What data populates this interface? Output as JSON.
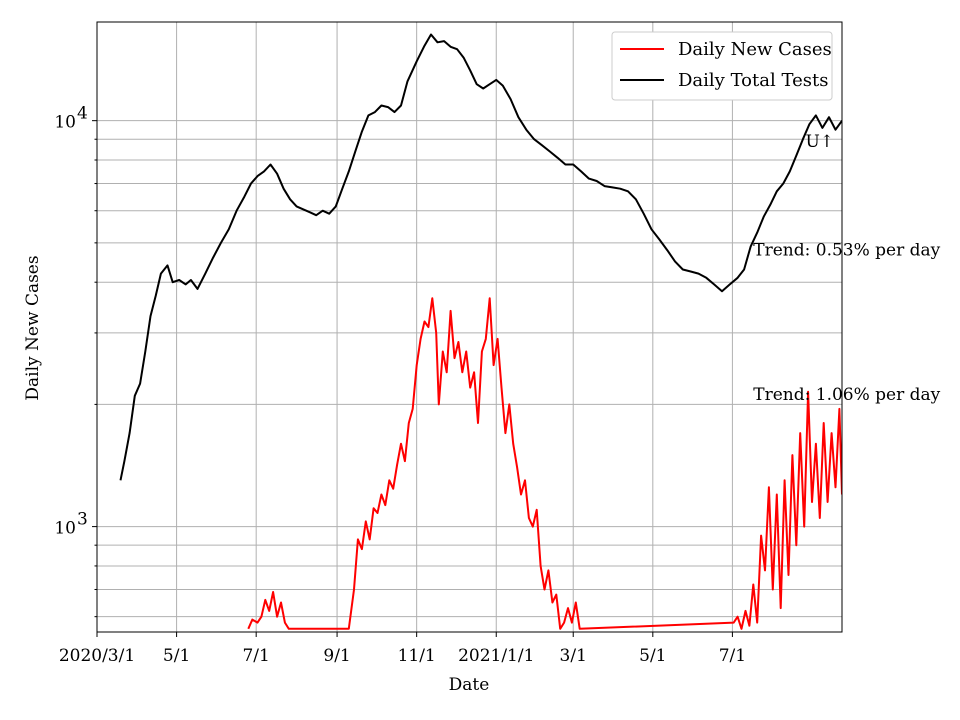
{
  "chart_data": {
    "type": "line",
    "xlabel": "Date",
    "ylabel": "Daily New Cases",
    "y_scale": "log",
    "ylim": [
      550,
      17500
    ],
    "xlim": [
      "2020-03-01",
      "2021-09-23"
    ],
    "grid": true,
    "legend_position": "top-right",
    "x_ticks": [
      {
        "date": "2020-03-01",
        "label": "2020/3/1"
      },
      {
        "date": "2020-05-01",
        "label": "5/1"
      },
      {
        "date": "2020-07-01",
        "label": "7/1"
      },
      {
        "date": "2020-09-01",
        "label": "9/1"
      },
      {
        "date": "2020-11-01",
        "label": "11/1"
      },
      {
        "date": "2021-01-01",
        "label": "2021/1/1"
      },
      {
        "date": "2021-03-01",
        "label": "3/1"
      },
      {
        "date": "2021-05-01",
        "label": "5/1"
      },
      {
        "date": "2021-07-01",
        "label": "7/1"
      }
    ],
    "y_major_ticks": [
      {
        "value": 1000,
        "base": "10",
        "exp": "3"
      },
      {
        "value": 10000,
        "base": "10",
        "exp": "4"
      }
    ],
    "y_minor_ticks": [
      600,
      700,
      800,
      900,
      2000,
      3000,
      4000,
      5000,
      6000,
      7000,
      8000,
      9000
    ],
    "series": [
      {
        "name": "Daily New Cases",
        "color": "#ff0000",
        "points": [
          [
            "2020-06-25",
            560
          ],
          [
            "2020-06-28",
            590
          ],
          [
            "2020-07-02",
            580
          ],
          [
            "2020-07-05",
            600
          ],
          [
            "2020-07-08",
            660
          ],
          [
            "2020-07-11",
            620
          ],
          [
            "2020-07-14",
            690
          ],
          [
            "2020-07-17",
            600
          ],
          [
            "2020-07-20",
            650
          ],
          [
            "2020-07-23",
            580
          ],
          [
            "2020-07-26",
            560
          ],
          [
            "2020-09-10",
            560
          ],
          [
            "2020-09-14",
            700
          ],
          [
            "2020-09-17",
            930
          ],
          [
            "2020-09-20",
            880
          ],
          [
            "2020-09-23",
            1030
          ],
          [
            "2020-09-26",
            930
          ],
          [
            "2020-09-29",
            1110
          ],
          [
            "2020-10-02",
            1080
          ],
          [
            "2020-10-05",
            1200
          ],
          [
            "2020-10-08",
            1130
          ],
          [
            "2020-10-11",
            1300
          ],
          [
            "2020-10-14",
            1240
          ],
          [
            "2020-10-17",
            1420
          ],
          [
            "2020-10-20",
            1600
          ],
          [
            "2020-10-23",
            1450
          ],
          [
            "2020-10-26",
            1800
          ],
          [
            "2020-10-29",
            1950
          ],
          [
            "2020-11-01",
            2500
          ],
          [
            "2020-11-04",
            2900
          ],
          [
            "2020-11-07",
            3200
          ],
          [
            "2020-11-10",
            3100
          ],
          [
            "2020-11-13",
            3650
          ],
          [
            "2020-11-16",
            3000
          ],
          [
            "2020-11-18",
            2000
          ],
          [
            "2020-11-21",
            2700
          ],
          [
            "2020-11-24",
            2400
          ],
          [
            "2020-11-27",
            3400
          ],
          [
            "2020-11-30",
            2600
          ],
          [
            "2020-12-03",
            2850
          ],
          [
            "2020-12-06",
            2400
          ],
          [
            "2020-12-09",
            2700
          ],
          [
            "2020-12-12",
            2200
          ],
          [
            "2020-12-15",
            2400
          ],
          [
            "2020-12-18",
            1800
          ],
          [
            "2020-12-21",
            2700
          ],
          [
            "2020-12-24",
            2900
          ],
          [
            "2020-12-27",
            3650
          ],
          [
            "2020-12-30",
            2500
          ],
          [
            "2021-01-02",
            2900
          ],
          [
            "2021-01-05",
            2200
          ],
          [
            "2021-01-08",
            1700
          ],
          [
            "2021-01-11",
            2000
          ],
          [
            "2021-01-14",
            1600
          ],
          [
            "2021-01-17",
            1400
          ],
          [
            "2021-01-20",
            1200
          ],
          [
            "2021-01-23",
            1300
          ],
          [
            "2021-01-26",
            1050
          ],
          [
            "2021-01-29",
            1000
          ],
          [
            "2021-02-01",
            1100
          ],
          [
            "2021-02-04",
            800
          ],
          [
            "2021-02-07",
            700
          ],
          [
            "2021-02-10",
            780
          ],
          [
            "2021-02-13",
            650
          ],
          [
            "2021-02-16",
            680
          ],
          [
            "2021-02-19",
            560
          ],
          [
            "2021-02-22",
            580
          ],
          [
            "2021-02-25",
            630
          ],
          [
            "2021-02-28",
            580
          ],
          [
            "2021-03-03",
            650
          ],
          [
            "2021-03-06",
            560
          ],
          [
            "2021-07-02",
            580
          ],
          [
            "2021-07-05",
            600
          ],
          [
            "2021-07-08",
            560
          ],
          [
            "2021-07-11",
            620
          ],
          [
            "2021-07-14",
            570
          ],
          [
            "2021-07-17",
            720
          ],
          [
            "2021-07-20",
            580
          ],
          [
            "2021-07-23",
            950
          ],
          [
            "2021-07-26",
            780
          ],
          [
            "2021-07-29",
            1250
          ],
          [
            "2021-08-01",
            700
          ],
          [
            "2021-08-04",
            1200
          ],
          [
            "2021-08-07",
            630
          ],
          [
            "2021-08-10",
            1300
          ],
          [
            "2021-08-13",
            760
          ],
          [
            "2021-08-16",
            1500
          ],
          [
            "2021-08-19",
            900
          ],
          [
            "2021-08-22",
            1700
          ],
          [
            "2021-08-25",
            1000
          ],
          [
            "2021-08-28",
            2150
          ],
          [
            "2021-08-31",
            1150
          ],
          [
            "2021-09-03",
            1600
          ],
          [
            "2021-09-06",
            1050
          ],
          [
            "2021-09-09",
            1800
          ],
          [
            "2021-09-12",
            1150
          ],
          [
            "2021-09-15",
            1700
          ],
          [
            "2021-09-18",
            1250
          ],
          [
            "2021-09-21",
            1950
          ],
          [
            "2021-09-23",
            1200
          ]
        ]
      },
      {
        "name": "Daily Total Tests",
        "color": "#000000",
        "points": [
          [
            "2020-03-19",
            1300
          ],
          [
            "2020-03-22",
            1450
          ],
          [
            "2020-03-26",
            1700
          ],
          [
            "2020-03-30",
            2100
          ],
          [
            "2020-04-03",
            2250
          ],
          [
            "2020-04-07",
            2700
          ],
          [
            "2020-04-11",
            3300
          ],
          [
            "2020-04-15",
            3700
          ],
          [
            "2020-04-19",
            4200
          ],
          [
            "2020-04-24",
            4400
          ],
          [
            "2020-04-28",
            4000
          ],
          [
            "2020-05-03",
            4050
          ],
          [
            "2020-05-08",
            3950
          ],
          [
            "2020-05-12",
            4050
          ],
          [
            "2020-05-17",
            3850
          ],
          [
            "2020-05-23",
            4200
          ],
          [
            "2020-05-29",
            4600
          ],
          [
            "2020-06-04",
            5000
          ],
          [
            "2020-06-10",
            5400
          ],
          [
            "2020-06-16",
            6000
          ],
          [
            "2020-06-22",
            6500
          ],
          [
            "2020-06-27",
            7000
          ],
          [
            "2020-07-02",
            7300
          ],
          [
            "2020-07-07",
            7500
          ],
          [
            "2020-07-12",
            7800
          ],
          [
            "2020-07-17",
            7400
          ],
          [
            "2020-07-22",
            6800
          ],
          [
            "2020-07-27",
            6400
          ],
          [
            "2020-08-01",
            6150
          ],
          [
            "2020-08-06",
            6050
          ],
          [
            "2020-08-11",
            5950
          ],
          [
            "2020-08-16",
            5850
          ],
          [
            "2020-08-21",
            6000
          ],
          [
            "2020-08-26",
            5900
          ],
          [
            "2020-08-31",
            6150
          ],
          [
            "2020-09-05",
            6800
          ],
          [
            "2020-09-10",
            7500
          ],
          [
            "2020-09-15",
            8400
          ],
          [
            "2020-09-20",
            9400
          ],
          [
            "2020-09-25",
            10300
          ],
          [
            "2020-09-30",
            10500
          ],
          [
            "2020-10-05",
            10900
          ],
          [
            "2020-10-10",
            10800
          ],
          [
            "2020-10-15",
            10500
          ],
          [
            "2020-10-20",
            10900
          ],
          [
            "2020-10-25",
            12500
          ],
          [
            "2020-11-01",
            14000
          ],
          [
            "2020-11-07",
            15300
          ],
          [
            "2020-11-12",
            16300
          ],
          [
            "2020-11-17",
            15600
          ],
          [
            "2020-11-22",
            15700
          ],
          [
            "2020-11-27",
            15200
          ],
          [
            "2020-12-02",
            15000
          ],
          [
            "2020-12-07",
            14300
          ],
          [
            "2020-12-12",
            13300
          ],
          [
            "2020-12-17",
            12300
          ],
          [
            "2020-12-22",
            12000
          ],
          [
            "2020-12-27",
            12300
          ],
          [
            "2021-01-01",
            12600
          ],
          [
            "2021-01-06",
            12200
          ],
          [
            "2021-01-12",
            11300
          ],
          [
            "2021-01-18",
            10200
          ],
          [
            "2021-01-24",
            9500
          ],
          [
            "2021-01-30",
            9000
          ],
          [
            "2021-02-05",
            8700
          ],
          [
            "2021-02-11",
            8400
          ],
          [
            "2021-02-17",
            8100
          ],
          [
            "2021-02-23",
            7800
          ],
          [
            "2021-03-01",
            7800
          ],
          [
            "2021-03-07",
            7500
          ],
          [
            "2021-03-13",
            7200
          ],
          [
            "2021-03-19",
            7100
          ],
          [
            "2021-03-25",
            6900
          ],
          [
            "2021-03-31",
            6850
          ],
          [
            "2021-04-06",
            6800
          ],
          [
            "2021-04-12",
            6700
          ],
          [
            "2021-04-18",
            6400
          ],
          [
            "2021-04-24",
            5900
          ],
          [
            "2021-04-30",
            5400
          ],
          [
            "2021-05-06",
            5100
          ],
          [
            "2021-05-12",
            4800
          ],
          [
            "2021-05-18",
            4500
          ],
          [
            "2021-05-24",
            4300
          ],
          [
            "2021-05-30",
            4250
          ],
          [
            "2021-06-05",
            4200
          ],
          [
            "2021-06-11",
            4100
          ],
          [
            "2021-06-17",
            3950
          ],
          [
            "2021-06-23",
            3800
          ],
          [
            "2021-06-29",
            3950
          ],
          [
            "2021-07-05",
            4100
          ],
          [
            "2021-07-10",
            4300
          ],
          [
            "2021-07-15",
            4900
          ],
          [
            "2021-07-20",
            5300
          ],
          [
            "2021-07-25",
            5800
          ],
          [
            "2021-07-30",
            6200
          ],
          [
            "2021-08-04",
            6700
          ],
          [
            "2021-08-09",
            7000
          ],
          [
            "2021-08-14",
            7500
          ],
          [
            "2021-08-19",
            8200
          ],
          [
            "2021-08-24",
            9000
          ],
          [
            "2021-08-29",
            9800
          ],
          [
            "2021-09-03",
            10300
          ],
          [
            "2021-09-08",
            9600
          ],
          [
            "2021-09-13",
            10200
          ],
          [
            "2021-09-18",
            9500
          ],
          [
            "2021-09-23",
            10000
          ]
        ]
      }
    ],
    "legend": [
      "Daily New Cases",
      "Daily Total Tests"
    ],
    "annotations": [
      {
        "text": "Trend: 0.53% per day",
        "anchor": [
          "2021-07-17",
          4650
        ]
      },
      {
        "text": "Trend: 1.06% per day",
        "anchor": [
          "2021-07-17",
          2050
        ]
      },
      {
        "text": "U↑",
        "anchor": [
          "2021-08-26",
          8600
        ]
      }
    ]
  }
}
